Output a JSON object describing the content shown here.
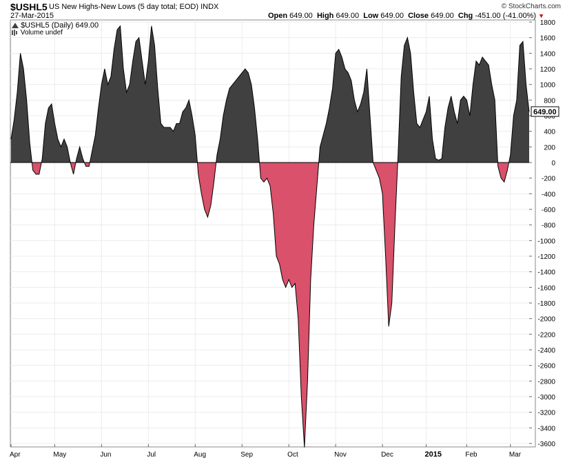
{
  "header": {
    "symbol": "$USHL5",
    "description": "US New Highs-New Lows (5 day total; EOD)",
    "exchange": "INDX",
    "date": "27-Mar-2015",
    "credit": "© StockCharts.com",
    "open_label": "Open",
    "open_value": "649.00",
    "high_label": "High",
    "high_value": "649.00",
    "low_label": "Low",
    "low_value": "649.00",
    "close_label": "Close",
    "close_value": "649.00",
    "chg_label": "Chg",
    "chg_value": "-451.00 (-41.00%)",
    "chg_arrow": "▼"
  },
  "legend": {
    "series": "$USHL5 (Daily) 649.00",
    "volume": "Volume undef"
  },
  "last_price": "649.00",
  "colors": {
    "positive": "#404040",
    "negative": "#d9516a",
    "line": "#000000"
  },
  "chart_data": {
    "type": "area",
    "title": "US New Highs-New Lows (5 day total; EOD)",
    "ylim": [
      -3700,
      1850
    ],
    "y_ticks": [
      1800,
      1600,
      1400,
      1200,
      1000,
      800,
      600,
      400,
      200,
      0,
      -200,
      -400,
      -600,
      -800,
      -1000,
      -1200,
      -1400,
      -1600,
      -1800,
      -2000,
      -2200,
      -2400,
      -2600,
      -2800,
      -3000,
      -3200,
      -3400,
      -3600
    ],
    "x_labels": [
      "Apr",
      "May",
      "Jun",
      "Jul",
      "Aug",
      "Sep",
      "Oct",
      "Nov",
      "Dec",
      "2015",
      "Feb",
      "Mar"
    ],
    "x_label_idx": [
      0,
      14,
      29,
      44,
      59,
      74,
      89,
      104,
      119,
      133,
      146,
      160
    ],
    "x_bold_idx": 133,
    "values": [
      300,
      550,
      900,
      1400,
      1200,
      800,
      250,
      -100,
      -150,
      -150,
      50,
      500,
      700,
      750,
      500,
      300,
      200,
      300,
      200,
      0,
      -150,
      50,
      200,
      50,
      -50,
      -50,
      150,
      350,
      700,
      1000,
      1200,
      1000,
      1100,
      1450,
      1700,
      1750,
      1200,
      900,
      1000,
      1300,
      1550,
      1600,
      1300,
      1000,
      1300,
      1750,
      1500,
      950,
      500,
      450,
      450,
      450,
      400,
      500,
      500,
      650,
      700,
      800,
      600,
      350,
      -150,
      -400,
      -600,
      -700,
      -550,
      -250,
      100,
      300,
      600,
      800,
      950,
      1000,
      1050,
      1100,
      1150,
      1200,
      1150,
      1000,
      700,
      300,
      -200,
      -250,
      -200,
      -300,
      -650,
      -1200,
      -1300,
      -1500,
      -1600,
      -1500,
      -1600,
      -1550,
      -2000,
      -3000,
      -3650,
      -2800,
      -1500,
      -800,
      -300,
      200,
      350,
      500,
      700,
      950,
      1400,
      1450,
      1350,
      1200,
      1150,
      1050,
      800,
      650,
      750,
      900,
      1200,
      600,
      0,
      -100,
      -200,
      -400,
      -1200,
      -2100,
      -1800,
      -800,
      100,
      1100,
      1500,
      1600,
      1400,
      900,
      500,
      450,
      550,
      650,
      850,
      300,
      50,
      30,
      50,
      450,
      700,
      850,
      650,
      500,
      800,
      850,
      800,
      600,
      1000,
      1300,
      1250,
      1350,
      1300,
      1250,
      1000,
      800,
      -50,
      -200,
      -250,
      -100,
      100,
      600,
      800,
      1500,
      1550,
      1000,
      650
    ]
  }
}
